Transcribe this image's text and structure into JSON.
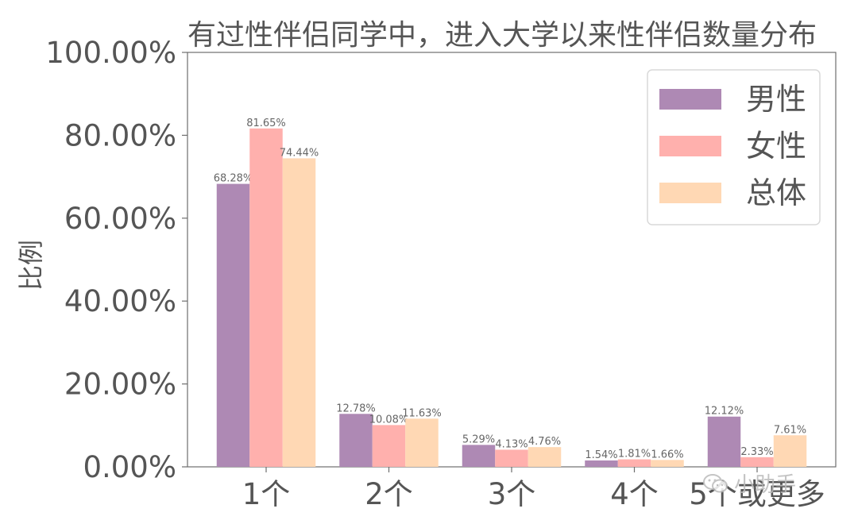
{
  "chart_data": {
    "type": "bar",
    "title": "有过性伴侣同学中，进入大学以来性伴侣数量分布",
    "xlabel": "",
    "ylabel": "比例",
    "categories": [
      "1个",
      "2个",
      "3个",
      "4个",
      "5个或更多"
    ],
    "series": [
      {
        "name": "男性",
        "color": "#ae89b4",
        "values": [
          68.28,
          12.78,
          5.29,
          1.54,
          12.12
        ],
        "labels": [
          "68.28%",
          "12.78%",
          "5.29%",
          "1.54%",
          "12.12%"
        ]
      },
      {
        "name": "女性",
        "color": "#ffb0ad",
        "values": [
          81.65,
          10.08,
          4.13,
          1.81,
          2.33
        ],
        "labels": [
          "81.65%",
          "10.08%",
          "4.13%",
          "1.81%",
          "2.33%"
        ]
      },
      {
        "name": "总体",
        "color": "#ffd8b4",
        "values": [
          74.44,
          11.63,
          4.76,
          1.66,
          7.61
        ],
        "labels": [
          "74.44%",
          "11.63%",
          "4.76%",
          "1.66%",
          "7.61%"
        ]
      }
    ],
    "ylim": [
      0,
      100
    ],
    "yticks": [
      0,
      20,
      40,
      60,
      80,
      100
    ],
    "ytick_labels": [
      "0.00%",
      "20.00%",
      "40.00%",
      "60.00%",
      "80.00%",
      "100.00%"
    ],
    "grid": false,
    "legend_position": "top-right"
  },
  "watermark": {
    "text": "小助手",
    "icon": "wechat-icon"
  }
}
